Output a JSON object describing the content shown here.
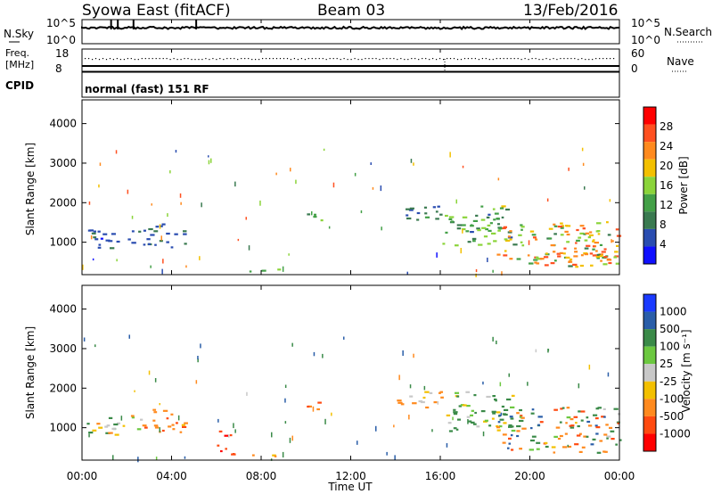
{
  "header": {
    "title": "Syowa East (fitACF)",
    "beam": "Beam 03",
    "date": "13/Feb/2016"
  },
  "noise_panel": {
    "left_label": "N.Sky",
    "left_ticks": [
      "10^5",
      "10^0"
    ],
    "right_label": "N.Search",
    "right_ticks": [
      "10^5",
      "10^0"
    ]
  },
  "freq_panel": {
    "left_label_line1": "Freq.",
    "left_label_line2": "[MHz]",
    "left_ticks": [
      "18",
      "8"
    ],
    "right_label": "Nave",
    "right_ticks": [
      "60",
      "0"
    ],
    "cpid_label": "CPID",
    "mode_text": "normal (fast) 151 RF"
  },
  "time_axis": {
    "ticks": [
      "00:00",
      "04:00",
      "08:00",
      "12:00",
      "16:00",
      "20:00",
      "00:00"
    ],
    "label": "Time UT"
  },
  "colors": {
    "power": [
      "#1010ff",
      "#2a4db0",
      "#3a7a50",
      "#43a047",
      "#8bd43a",
      "#f3c000",
      "#ff8a1e",
      "#ff5020",
      "#ff0000"
    ],
    "velocity": [
      "#ff0000",
      "#ff4a10",
      "#ff8a1e",
      "#f3c000",
      "#c8c8c8",
      "#6cc840",
      "#3a8a48",
      "#2a5ea8",
      "#1a3aff"
    ]
  },
  "chart_data": [
    {
      "type": "heatmap",
      "name": "power",
      "xlabel": "",
      "ylabel": "Slant Range [km]",
      "xlim": [
        "00:00",
        "00:00"
      ],
      "ylim": [
        180,
        4600
      ],
      "y_ticks": [
        "1000",
        "2000",
        "3000",
        "4000"
      ],
      "colorbar": {
        "label": "Power [dB]",
        "ticks": [
          "28",
          "24",
          "20",
          "16",
          "12",
          "8",
          "4"
        ],
        "range": [
          0,
          32
        ]
      },
      "regions": [
        {
          "t": [
            0.2,
            2.6
          ],
          "r": [
            800,
            1300
          ],
          "v": [
            3,
            9
          ]
        },
        {
          "t": [
            2.6,
            4.6
          ],
          "r": [
            850,
            1450
          ],
          "v": [
            4,
            10
          ]
        },
        {
          "t": [
            7.0,
            9.0
          ],
          "r": [
            250,
            350
          ],
          "v": [
            8,
            16
          ]
        },
        {
          "t": [
            10.0,
            10.8
          ],
          "r": [
            1450,
            1750
          ],
          "v": [
            10,
            20
          ]
        },
        {
          "t": [
            14.0,
            16.2
          ],
          "r": [
            1500,
            1900
          ],
          "v": [
            4,
            12
          ]
        },
        {
          "t": [
            16.0,
            19.2
          ],
          "r": [
            900,
            1900
          ],
          "v": [
            6,
            18
          ]
        },
        {
          "t": [
            18.5,
            24.0
          ],
          "r": [
            350,
            1500
          ],
          "v": [
            10,
            28
          ]
        },
        {
          "t": [
            20.0,
            23.5
          ],
          "r": [
            450,
            950
          ],
          "v": [
            18,
            28
          ]
        }
      ]
    },
    {
      "type": "heatmap",
      "name": "velocity",
      "xlabel": "Time UT",
      "ylabel": "Slant Range [km]",
      "xlim": [
        "00:00",
        "00:00"
      ],
      "ylim": [
        180,
        4600
      ],
      "y_ticks": [
        "1000",
        "2000",
        "3000",
        "4000"
      ],
      "colorbar": {
        "label": "Velocity [m s⁻¹]",
        "ticks": [
          "1000",
          "500",
          "100",
          "25",
          "-25",
          "-100",
          "-500",
          "-1000"
        ],
        "range": [
          -1000,
          1000
        ]
      },
      "regions": [
        {
          "t": [
            0.2,
            2.6
          ],
          "r": [
            800,
            1300
          ],
          "v": [
            -200,
            300
          ]
        },
        {
          "t": [
            2.6,
            4.6
          ],
          "r": [
            850,
            1450
          ],
          "v": [
            -600,
            -50
          ]
        },
        {
          "t": [
            6.0,
            6.8
          ],
          "r": [
            300,
            900
          ],
          "v": [
            -1000,
            -500
          ]
        },
        {
          "t": [
            7.0,
            9.0
          ],
          "r": [
            250,
            350
          ],
          "v": [
            -300,
            -50
          ]
        },
        {
          "t": [
            10.0,
            10.8
          ],
          "r": [
            1450,
            1750
          ],
          "v": [
            -800,
            -100
          ]
        },
        {
          "t": [
            14.0,
            16.2
          ],
          "r": [
            1500,
            1900
          ],
          "v": [
            -300,
            0
          ]
        },
        {
          "t": [
            16.0,
            19.2
          ],
          "r": [
            900,
            1900
          ],
          "v": [
            -100,
            500
          ]
        },
        {
          "t": [
            18.5,
            24.0
          ],
          "r": [
            350,
            1500
          ],
          "v": [
            -700,
            700
          ]
        }
      ]
    }
  ]
}
